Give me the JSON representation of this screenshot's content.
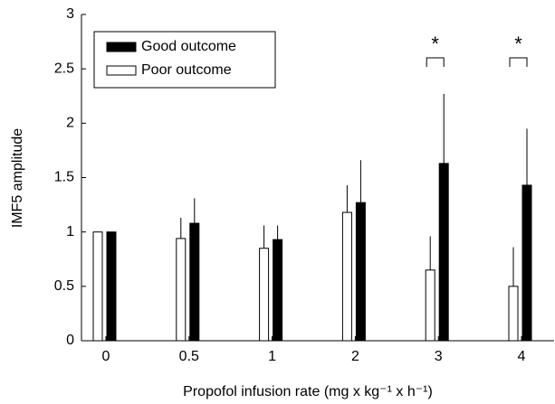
{
  "chart_data": {
    "type": "bar",
    "x_label": "Propofol infusion rate (mg x kg⁻¹ x h⁻¹)",
    "y_label": "IMF5 amplitude",
    "categories": [
      "0",
      "0.5",
      "1",
      "2",
      "3",
      "4"
    ],
    "series": [
      {
        "name": "Poor outcome",
        "color": "#ffffff",
        "values": [
          1.0,
          0.94,
          0.85,
          1.18,
          0.65,
          0.5
        ],
        "errors": [
          0,
          0.19,
          0.21,
          0.25,
          0.31,
          0.36
        ]
      },
      {
        "name": "Good outcome",
        "color": "#000000",
        "values": [
          1.0,
          1.08,
          0.93,
          1.27,
          1.63,
          1.43
        ],
        "errors": [
          0,
          0.23,
          0.13,
          0.39,
          0.64,
          0.52
        ]
      }
    ],
    "ylim": [
      0,
      3
    ],
    "yticks": [
      0,
      0.5,
      1,
      1.5,
      2,
      2.5,
      3
    ],
    "legend": "upper left",
    "annotations": [
      "*",
      "*"
    ]
  }
}
